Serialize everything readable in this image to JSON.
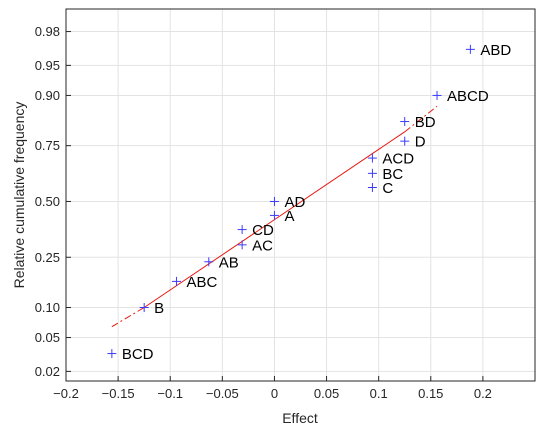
{
  "chart_data": {
    "type": "scatter",
    "title": "",
    "xlabel": "Effect",
    "ylabel": "Relative cumulative frequency",
    "scale_y": "normal-probability",
    "xlim": [
      -0.2,
      0.25
    ],
    "ylim": [
      0.015,
      0.99
    ],
    "x_ticks": [
      -0.2,
      -0.15,
      -0.1,
      -0.05,
      0,
      0.05,
      0.1,
      0.15,
      0.2
    ],
    "x_tick_labels": [
      "−0.2",
      "−0.15",
      "−0.1",
      "−0.05",
      "0",
      "0.05",
      "0.1",
      "0.15",
      "0.2"
    ],
    "y_ticks": [
      0.02,
      0.05,
      0.1,
      0.25,
      0.5,
      0.75,
      0.9,
      0.95,
      0.98
    ],
    "y_tick_labels": [
      "0.02",
      "0.05",
      "0.10",
      "0.25",
      "0.50",
      "0.75",
      "0.90",
      "0.95",
      "0.98"
    ],
    "grid": true,
    "marker_color": "#3b3bff",
    "line_color": "#e8190f",
    "points": [
      {
        "label": "BCD",
        "x": -0.156,
        "y": 0.033
      },
      {
        "label": "B",
        "x": -0.125,
        "y": 0.1
      },
      {
        "label": "ABC",
        "x": -0.094,
        "y": 0.167
      },
      {
        "label": "AB",
        "x": -0.063,
        "y": 0.233
      },
      {
        "label": "AC",
        "x": -0.031,
        "y": 0.3
      },
      {
        "label": "CD",
        "x": -0.031,
        "y": 0.367
      },
      {
        "label": "A",
        "x": 0.0,
        "y": 0.433
      },
      {
        "label": "AD",
        "x": 0.0,
        "y": 0.5
      },
      {
        "label": "C",
        "x": 0.094,
        "y": 0.567
      },
      {
        "label": "BC",
        "x": 0.094,
        "y": 0.633
      },
      {
        "label": "ACD",
        "x": 0.094,
        "y": 0.7
      },
      {
        "label": "D",
        "x": 0.125,
        "y": 0.767
      },
      {
        "label": "BD",
        "x": 0.125,
        "y": 0.833
      },
      {
        "label": "ABCD",
        "x": 0.156,
        "y": 0.9
      },
      {
        "label": "ABD",
        "x": 0.188,
        "y": 0.967
      }
    ],
    "reference_line": {
      "solid": [
        [
          -0.125,
          0.1
        ],
        [
          0.125,
          0.8
        ]
      ],
      "dashed_left": [
        [
          -0.156,
          0.065
        ],
        [
          -0.125,
          0.1
        ]
      ],
      "dashed_right": [
        [
          0.125,
          0.8
        ],
        [
          0.156,
          0.875
        ]
      ]
    }
  }
}
